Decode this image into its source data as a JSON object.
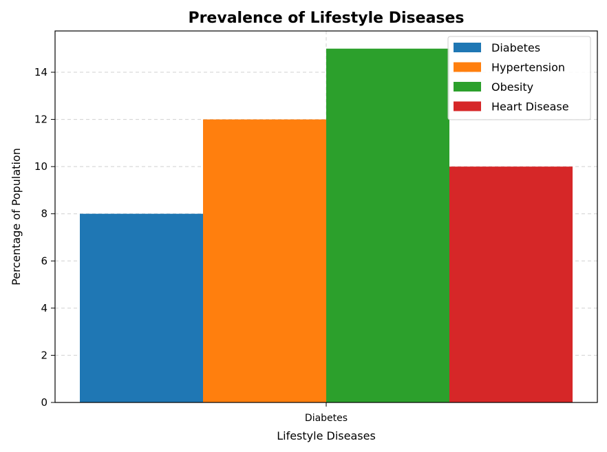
{
  "chart_data": {
    "type": "bar",
    "title": "Prevalence of Lifestyle Diseases",
    "xlabel": "Lifestyle Diseases",
    "ylabel": "Percentage of Population",
    "categories": [
      "Diabetes"
    ],
    "series": [
      {
        "name": "Diabetes",
        "values": [
          8
        ],
        "color": "#1f77b4"
      },
      {
        "name": "Hypertension",
        "values": [
          12
        ],
        "color": "#ff7f0e"
      },
      {
        "name": "Obesity",
        "values": [
          15
        ],
        "color": "#2ca02c"
      },
      {
        "name": "Heart Disease",
        "values": [
          10
        ],
        "color": "#d62728"
      }
    ],
    "ylim": [
      0,
      15.75
    ],
    "yticks": [
      0,
      2,
      4,
      6,
      8,
      10,
      12,
      14
    ],
    "grid": true,
    "legend": "top-right"
  }
}
